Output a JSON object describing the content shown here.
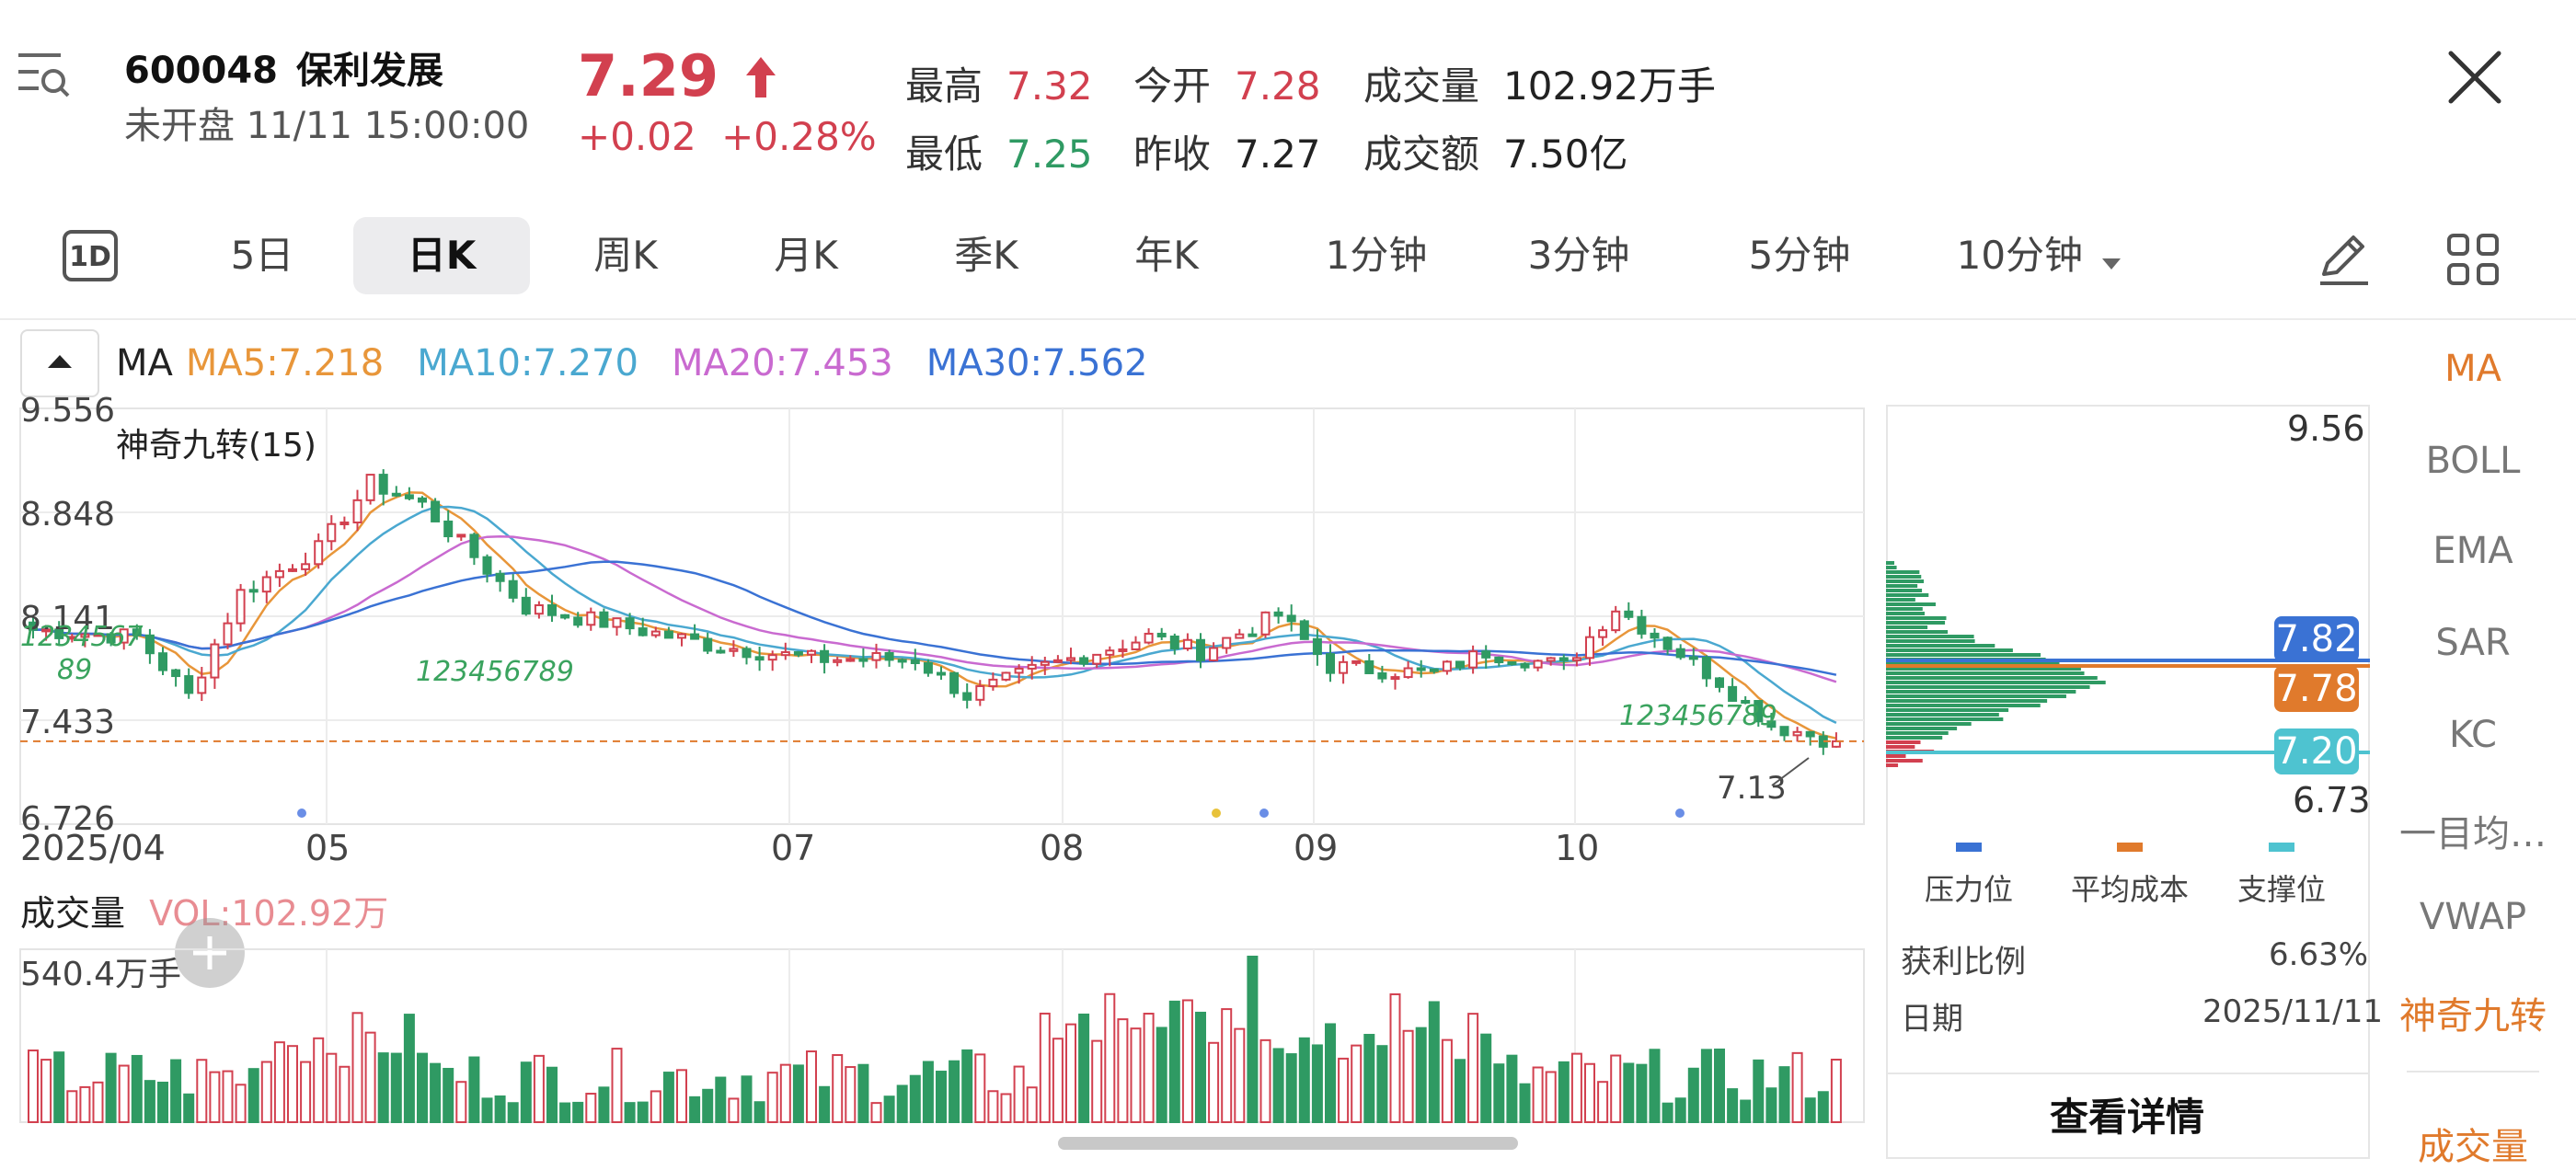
{
  "header": {
    "code": "600048",
    "name": "保利发展",
    "status": "未开盘 11/11 15:00:00",
    "price": "7.29",
    "change": "+0.02",
    "change_pct": "+0.28%",
    "quotes": [
      {
        "label": "最高",
        "value": "7.32",
        "color": "red"
      },
      {
        "label": "今开",
        "value": "7.28",
        "color": "red"
      },
      {
        "label": "成交量",
        "value": "102.92万手",
        "color": "dark"
      },
      {
        "label": "最低",
        "value": "7.25",
        "color": "green"
      },
      {
        "label": "昨收",
        "value": "7.27",
        "color": "dark"
      },
      {
        "label": "成交额",
        "value": "7.50亿",
        "color": "dark"
      }
    ]
  },
  "tabs": {
    "oned_label": "1D",
    "items": [
      "5日",
      "日K",
      "周K",
      "月K",
      "季K",
      "年K",
      "1分钟",
      "3分钟",
      "5分钟",
      "10分钟"
    ],
    "active": "日K"
  },
  "ma_legend": {
    "title": "MA",
    "items": [
      {
        "label": "MA5:7.218",
        "color": "#e8963a"
      },
      {
        "label": "MA10:7.270",
        "color": "#4aa8d0"
      },
      {
        "label": "MA20:7.453",
        "color": "#c96ad0"
      },
      {
        "label": "MA30:7.562",
        "color": "#3a72d4"
      }
    ]
  },
  "chart_data": {
    "type": "candlestick",
    "title": "神奇九转(15)",
    "y_ticks": [
      "9.556",
      "8.848",
      "8.141",
      "7.433",
      "6.726"
    ],
    "ylim": [
      6.726,
      9.556
    ],
    "x_ticks": [
      "2025/04",
      "05",
      "07",
      "08",
      "09",
      "10"
    ],
    "last_close": 7.29,
    "low_marker": "7.13",
    "nine_turn_marks": [
      "1234567",
      "89",
      "123456789",
      "123456789"
    ],
    "colors": {
      "up": "#d2404f",
      "down": "#2f9a63",
      "ma5": "#e8963a",
      "ma10": "#4aa8d0",
      "ma20": "#c96ad0",
      "ma30": "#3a72d4"
    }
  },
  "volume": {
    "title": "成交量",
    "vol_label": "VOL:102.92万",
    "max_label": "540.4万手"
  },
  "chips": {
    "top_price": "9.56",
    "bottom_price": "6.73",
    "pressure": "7.82",
    "avg_cost": "7.78",
    "support": "7.20",
    "legend": [
      {
        "label": "压力位",
        "color": "#3a72d4"
      },
      {
        "label": "平均成本",
        "color": "#e07a2c"
      },
      {
        "label": "支撑位",
        "color": "#4ec3d0"
      }
    ],
    "profit_ratio_label": "获利比例",
    "profit_ratio": "6.63%",
    "date_label": "日期",
    "date": "2025/11/11",
    "detail_button": "查看详情"
  },
  "indicators": {
    "items": [
      "MA",
      "BOLL",
      "EMA",
      "SAR",
      "KC",
      "一目均…",
      "VWAP",
      "神奇九转"
    ],
    "active": [
      "MA",
      "神奇九转"
    ],
    "volume_tab": "成交量"
  }
}
